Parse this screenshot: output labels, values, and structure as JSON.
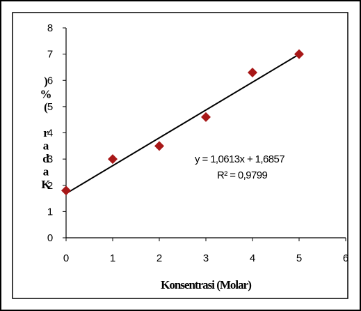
{
  "chart_data": {
    "type": "scatter",
    "x": [
      0,
      1,
      2,
      3,
      4,
      5
    ],
    "y": [
      1.8,
      3.0,
      3.5,
      4.6,
      6.3,
      7.0
    ],
    "xlim": [
      0,
      6
    ],
    "ylim": [
      0,
      8
    ],
    "x_ticks": [
      "0",
      "1",
      "2",
      "3",
      "4",
      "5",
      "6"
    ],
    "y_ticks": [
      "0",
      "1",
      "2",
      "3",
      "4",
      "5",
      "6",
      "7",
      "8"
    ],
    "xlabel": "Konsentrasi (Molar)",
    "ylabel": "Kadar (%)",
    "marker": "diamond",
    "marker_color": "#a81818",
    "trendline": {
      "type": "linear",
      "slope": 1.0613,
      "intercept": 1.6857,
      "x_range": [
        0,
        5
      ],
      "color": "#000000",
      "equation": "y = 1,0613x + 1,6857",
      "r2": "R² = 0,9799"
    },
    "grid": false,
    "legend": "none"
  }
}
